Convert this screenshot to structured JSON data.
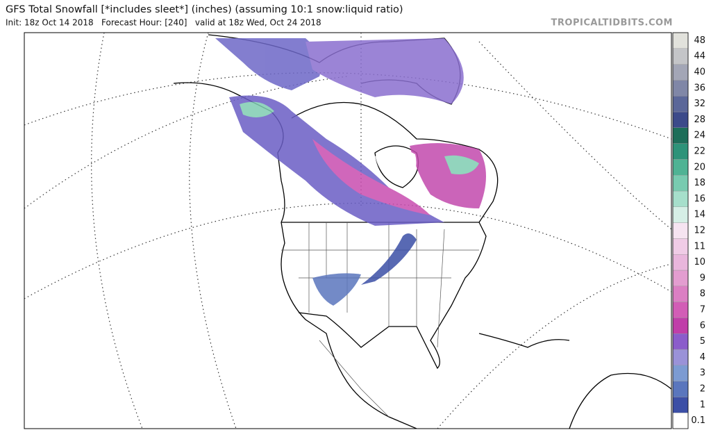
{
  "header": {
    "title": "GFS Total Snowfall [*includes sleet*] (inches) (assuming 10:1 snow:liquid ratio)",
    "subtitle": "Init: 18z Oct 14 2018   Forecast Hour: [240]   valid at 18z Wed, Oct 24 2018",
    "watermark": "TROPICALTIDBITS.COM"
  },
  "colorbar": {
    "levels": [
      {
        "label": "0.1",
        "color": "#ffffff"
      },
      {
        "label": "1",
        "color": "#3c4fa6"
      },
      {
        "label": "2",
        "color": "#5a76bd"
      },
      {
        "label": "3",
        "color": "#7c9bd2"
      },
      {
        "label": "4",
        "color": "#9a92d8"
      },
      {
        "label": "5",
        "color": "#8b5ccb"
      },
      {
        "label": "6",
        "color": "#c03ea9"
      },
      {
        "label": "7",
        "color": "#d25db6"
      },
      {
        "label": "8",
        "color": "#db7fc3"
      },
      {
        "label": "9",
        "color": "#e39dd0"
      },
      {
        "label": "10",
        "color": "#e9b6dc"
      },
      {
        "label": "11",
        "color": "#f0cce6"
      },
      {
        "label": "12",
        "color": "#f6e4f1"
      },
      {
        "label": "14",
        "color": "#d6efe6"
      },
      {
        "label": "16",
        "color": "#a6dfcb"
      },
      {
        "label": "18",
        "color": "#78cbb0"
      },
      {
        "label": "20",
        "color": "#4fb394"
      },
      {
        "label": "22",
        "color": "#2e9379"
      },
      {
        "label": "24",
        "color": "#1d6e59"
      },
      {
        "label": "28",
        "color": "#3c4a8a"
      },
      {
        "label": "32",
        "color": "#5b6799"
      },
      {
        "label": "36",
        "color": "#8087a7"
      },
      {
        "label": "40",
        "color": "#a3a6b6"
      },
      {
        "label": "44",
        "color": "#c4c5c8"
      },
      {
        "label": "48",
        "color": "#e2e2dc"
      }
    ]
  }
}
